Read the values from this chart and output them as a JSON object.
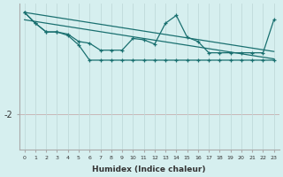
{
  "xlabel": "Humidex (Indice chaleur)",
  "bg_color": "#d6efef",
  "line_color": "#1a7070",
  "grid_color": "#c0dada",
  "hline_color": "#c8b8b8",
  "ytick_value": -2,
  "ytick_label": "-2",
  "xlim": [
    -0.5,
    23.5
  ],
  "ylim": [
    -2.8,
    0.55
  ],
  "marker": "+",
  "ms": 3,
  "lw": 0.9,
  "x_all": [
    0,
    1,
    2,
    3,
    4,
    5,
    6,
    7,
    8,
    9,
    10,
    11,
    12,
    13,
    14,
    15,
    16,
    17,
    18,
    19,
    20,
    21,
    22,
    23
  ],
  "trend1_x": [
    0,
    23
  ],
  "trend1_y": [
    0.35,
    -0.55
  ],
  "trend2_x": [
    0,
    23
  ],
  "trend2_y": [
    0.18,
    -0.72
  ],
  "line_jagged_y": [
    0.35,
    0.1,
    -0.1,
    -0.1,
    -0.15,
    -0.32,
    -0.36,
    -0.52,
    -0.52,
    -0.52,
    -0.25,
    -0.28,
    -0.38,
    0.1,
    0.28,
    -0.22,
    -0.32,
    -0.58,
    -0.58,
    -0.58,
    -0.58,
    -0.58,
    -0.58,
    0.18
  ],
  "line_flat_y": [
    0.35,
    0.1,
    -0.1,
    -0.1,
    -0.18,
    -0.4,
    -0.75,
    -0.75,
    -0.75,
    -0.75,
    -0.75,
    -0.75,
    -0.75,
    -0.75,
    -0.75,
    -0.75,
    -0.75,
    -0.75,
    -0.75,
    -0.75,
    -0.75,
    -0.75,
    -0.75,
    -0.75
  ],
  "line_flat_x_start": 0,
  "line_flat_x_end": 22
}
